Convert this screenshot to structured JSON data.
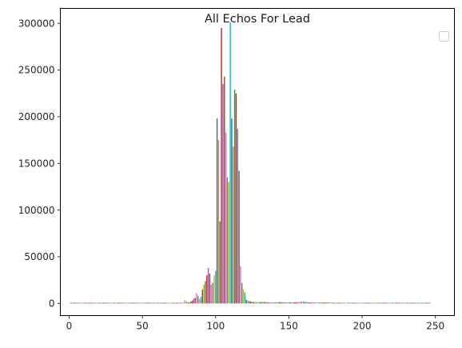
{
  "chart_data": {
    "type": "bar",
    "title": "All Echos For Lead",
    "xlabel": "",
    "ylabel": "",
    "xlim": [
      -6,
      263
    ],
    "ylim": [
      -13000,
      316000
    ],
    "xticks": [
      0,
      50,
      100,
      150,
      200,
      250
    ],
    "yticks": [
      0,
      50000,
      100000,
      150000,
      200000,
      250000,
      300000
    ],
    "grid": false,
    "legend": {
      "placement": "top-right",
      "entries": []
    },
    "palette": [
      "#1f77b4",
      "#ff7f0e",
      "#2ca02c",
      "#d62728",
      "#9467bd",
      "#8c564b",
      "#e377c2",
      "#7f7f7f",
      "#bcbd22",
      "#17becf"
    ],
    "x_start": 1,
    "values": [
      800,
      800,
      800,
      800,
      800,
      800,
      800,
      800,
      800,
      800,
      800,
      800,
      800,
      800,
      800,
      800,
      800,
      800,
      800,
      800,
      800,
      800,
      800,
      800,
      800,
      800,
      800,
      800,
      800,
      800,
      800,
      800,
      800,
      800,
      800,
      800,
      800,
      800,
      800,
      800,
      800,
      800,
      800,
      800,
      800,
      800,
      800,
      800,
      800,
      800,
      800,
      800,
      800,
      800,
      800,
      800,
      800,
      800,
      800,
      800,
      800,
      800,
      800,
      800,
      800,
      800,
      800,
      800,
      800,
      800,
      800,
      800,
      800,
      800,
      800,
      800,
      800,
      800,
      3500,
      2000,
      1200,
      1500,
      2000,
      3000,
      5000,
      6000,
      11000,
      8000,
      5000,
      7000,
      15000,
      20000,
      24000,
      30000,
      38000,
      32000,
      20000,
      22000,
      30000,
      35000,
      198000,
      175000,
      88000,
      295000,
      235000,
      243000,
      183000,
      135000,
      130000,
      301000,
      198000,
      168000,
      229000,
      225000,
      187000,
      142000,
      40000,
      22000,
      15000,
      12000,
      4000,
      3000,
      2500,
      2000,
      1500,
      1500,
      1500,
      1500,
      1500,
      1500,
      1500,
      1500,
      1500,
      1500,
      1200,
      1200,
      1200,
      1200,
      1200,
      1200,
      1200,
      1200,
      1200,
      1500,
      1200,
      1200,
      1200,
      1200,
      1200,
      1200,
      1200,
      1200,
      1200,
      1200,
      1200,
      1200,
      1200,
      1800,
      2500,
      2000,
      1500,
      1500,
      1200,
      1200,
      1200,
      1000,
      1000,
      1000,
      1000,
      1000,
      1000,
      1000,
      1000,
      1000,
      1000,
      1000,
      1000,
      1000,
      1000,
      1000,
      800,
      800,
      800,
      800,
      800,
      800,
      800,
      800,
      800,
      800,
      800,
      800,
      800,
      800,
      800,
      800,
      800,
      800,
      800,
      800,
      800,
      800,
      800,
      800,
      800,
      800,
      800,
      800,
      800,
      800,
      800,
      800,
      800,
      800,
      800,
      800,
      800,
      800,
      800,
      800,
      800,
      800,
      800,
      800,
      800,
      800,
      800,
      800,
      800,
      800,
      800,
      800,
      800,
      800,
      800,
      800,
      800,
      800,
      800,
      800,
      800,
      800,
      800,
      800,
      800,
      800
    ]
  }
}
